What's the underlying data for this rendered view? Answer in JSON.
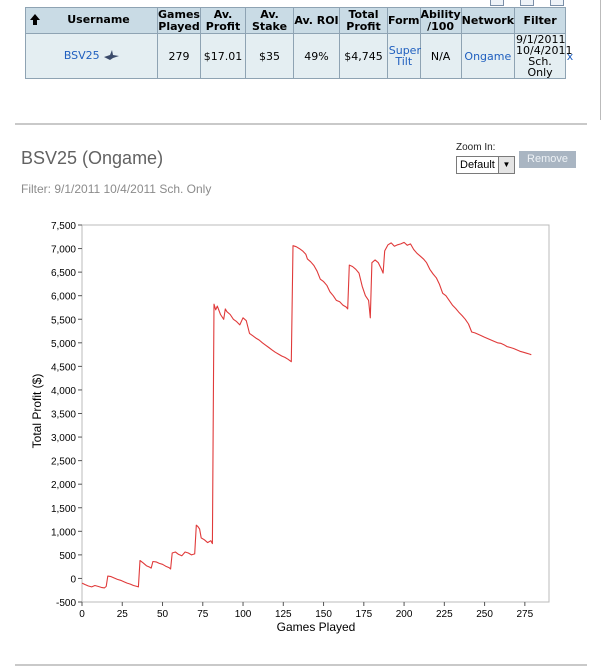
{
  "stats_table": {
    "headers": [
      "Username",
      "Games Played",
      "Av. Profit",
      "Av. Stake",
      "Av. ROI",
      "Total Profit",
      "Form",
      "Ability /100",
      "Network",
      "Filter"
    ],
    "row": {
      "username": "BSV25",
      "games_played": "279",
      "av_profit": "$17.01",
      "av_stake": "$35",
      "av_roi": "49%",
      "total_profit": "$4,745",
      "form": "Super Tilt",
      "ability": "N/A",
      "network": "Ongame",
      "filter": "9/1/2011 10/4/2011 Sch. Only",
      "remove_filter": "x"
    }
  },
  "header": {
    "player_title": "BSV25 (Ongame)",
    "filter_text": "Filter: 9/1/2011 10/4/2011 Sch. Only"
  },
  "zoom": {
    "label": "Zoom In:",
    "selected": "Default"
  },
  "remove_button": {
    "label": "Remove"
  },
  "colors": {
    "line": "#e03a3a",
    "zero_line": "#4a4ad0",
    "grid": "#dddddd",
    "header_bg": "#c9dbe5",
    "row_bg": "#e4eef2",
    "link": "#1f5fbf"
  },
  "chart_data": {
    "type": "line",
    "xlabel": "Games Played",
    "ylabel": "Total Profit ($)",
    "xlim": [
      0,
      290
    ],
    "ylim": [
      -500,
      7500
    ],
    "xticks": [
      0,
      25,
      50,
      75,
      100,
      125,
      150,
      175,
      200,
      225,
      250,
      275
    ],
    "yticks": [
      -500,
      0,
      500,
      1000,
      1500,
      2000,
      2500,
      3000,
      3500,
      4000,
      4500,
      5000,
      5500,
      6000,
      6500,
      7000,
      7500
    ],
    "ytick_labels": [
      "-500",
      "0",
      "500",
      "1,000",
      "1,500",
      "2,000",
      "2,500",
      "3,000",
      "3,500",
      "4,000",
      "4,500",
      "5,000",
      "5,500",
      "6,000",
      "6,500",
      "7,000",
      "7,500"
    ],
    "grid": true,
    "series": [
      {
        "points": [
          [
            0,
            -100
          ],
          [
            2,
            -130
          ],
          [
            4,
            -160
          ],
          [
            6,
            -180
          ],
          [
            8,
            -150
          ],
          [
            10,
            -170
          ],
          [
            12,
            -190
          ],
          [
            14,
            -200
          ],
          [
            15,
            -170
          ],
          [
            16,
            50
          ],
          [
            18,
            40
          ],
          [
            20,
            10
          ],
          [
            22,
            -20
          ],
          [
            24,
            -40
          ],
          [
            26,
            -70
          ],
          [
            28,
            -100
          ],
          [
            30,
            -120
          ],
          [
            32,
            -150
          ],
          [
            34,
            -170
          ],
          [
            35,
            -180
          ],
          [
            36,
            380
          ],
          [
            38,
            330
          ],
          [
            40,
            270
          ],
          [
            42,
            240
          ],
          [
            43,
            220
          ],
          [
            44,
            360
          ],
          [
            46,
            350
          ],
          [
            48,
            320
          ],
          [
            50,
            300
          ],
          [
            52,
            260
          ],
          [
            54,
            230
          ],
          [
            55,
            200
          ],
          [
            56,
            540
          ],
          [
            58,
            560
          ],
          [
            60,
            510
          ],
          [
            62,
            480
          ],
          [
            64,
            560
          ],
          [
            66,
            540
          ],
          [
            68,
            500
          ],
          [
            70,
            520
          ],
          [
            71,
            1130
          ],
          [
            72,
            1100
          ],
          [
            73,
            1050
          ],
          [
            74,
            860
          ],
          [
            76,
            820
          ],
          [
            78,
            760
          ],
          [
            80,
            800
          ],
          [
            81,
            740
          ],
          [
            82,
            5820
          ],
          [
            83,
            5700
          ],
          [
            84,
            5780
          ],
          [
            86,
            5600
          ],
          [
            88,
            5500
          ],
          [
            89,
            5720
          ],
          [
            90,
            5660
          ],
          [
            92,
            5600
          ],
          [
            94,
            5500
          ],
          [
            96,
            5450
          ],
          [
            98,
            5380
          ],
          [
            100,
            5530
          ],
          [
            102,
            5470
          ],
          [
            104,
            5200
          ],
          [
            106,
            5150
          ],
          [
            108,
            5100
          ],
          [
            110,
            5060
          ],
          [
            112,
            5000
          ],
          [
            114,
            4950
          ],
          [
            116,
            4900
          ],
          [
            118,
            4850
          ],
          [
            120,
            4800
          ],
          [
            122,
            4760
          ],
          [
            124,
            4720
          ],
          [
            126,
            4690
          ],
          [
            128,
            4650
          ],
          [
            130,
            4600
          ],
          [
            131,
            7060
          ],
          [
            133,
            7040
          ],
          [
            135,
            7000
          ],
          [
            137,
            6950
          ],
          [
            139,
            6880
          ],
          [
            140,
            6780
          ],
          [
            142,
            6720
          ],
          [
            144,
            6640
          ],
          [
            146,
            6520
          ],
          [
            148,
            6350
          ],
          [
            150,
            6300
          ],
          [
            152,
            6220
          ],
          [
            154,
            6080
          ],
          [
            156,
            6000
          ],
          [
            158,
            5900
          ],
          [
            160,
            5870
          ],
          [
            162,
            5800
          ],
          [
            164,
            5760
          ],
          [
            165,
            5720
          ],
          [
            166,
            6650
          ],
          [
            168,
            6620
          ],
          [
            170,
            6560
          ],
          [
            172,
            6480
          ],
          [
            174,
            6200
          ],
          [
            176,
            6000
          ],
          [
            178,
            5900
          ],
          [
            179,
            5530
          ],
          [
            180,
            6700
          ],
          [
            182,
            6760
          ],
          [
            184,
            6700
          ],
          [
            186,
            6560
          ],
          [
            187,
            6480
          ],
          [
            188,
            6950
          ],
          [
            190,
            7080
          ],
          [
            192,
            7120
          ],
          [
            194,
            7050
          ],
          [
            196,
            7080
          ],
          [
            198,
            7100
          ],
          [
            200,
            7130
          ],
          [
            202,
            7070
          ],
          [
            204,
            7100
          ],
          [
            206,
            6980
          ],
          [
            208,
            6900
          ],
          [
            210,
            6840
          ],
          [
            212,
            6780
          ],
          [
            214,
            6700
          ],
          [
            216,
            6560
          ],
          [
            218,
            6460
          ],
          [
            220,
            6380
          ],
          [
            222,
            6240
          ],
          [
            224,
            6050
          ],
          [
            226,
            6000
          ],
          [
            228,
            5900
          ],
          [
            230,
            5800
          ],
          [
            232,
            5730
          ],
          [
            234,
            5650
          ],
          [
            236,
            5580
          ],
          [
            238,
            5500
          ],
          [
            240,
            5400
          ],
          [
            242,
            5230
          ],
          [
            244,
            5210
          ],
          [
            246,
            5180
          ],
          [
            248,
            5150
          ],
          [
            250,
            5120
          ],
          [
            252,
            5090
          ],
          [
            254,
            5060
          ],
          [
            256,
            5030
          ],
          [
            258,
            5000
          ],
          [
            260,
            4990
          ],
          [
            262,
            4960
          ],
          [
            264,
            4920
          ],
          [
            266,
            4900
          ],
          [
            268,
            4880
          ],
          [
            270,
            4850
          ],
          [
            272,
            4820
          ],
          [
            274,
            4800
          ],
          [
            276,
            4780
          ],
          [
            278,
            4760
          ],
          [
            279,
            4745
          ]
        ]
      }
    ]
  }
}
